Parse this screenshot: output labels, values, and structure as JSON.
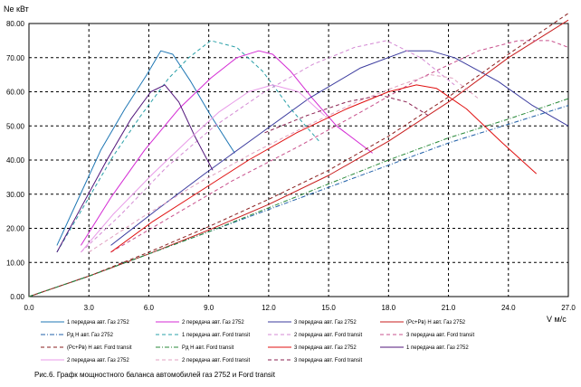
{
  "caption": "Рис.6. Графк мощностного баланса автомобилей газ 2752 и Ford transit",
  "chart_data": {
    "type": "line",
    "title": "",
    "ylabel": "Ne кВт",
    "xlabel": "V м/с",
    "xlim": [
      0,
      27
    ],
    "ylim": [
      0,
      80
    ],
    "xticks": [
      "0.0",
      "3.0",
      "6.0",
      "9.0",
      "12.0",
      "15.0",
      "18.0",
      "21.0",
      "24.0",
      "27.0"
    ],
    "yticks": [
      "0.00",
      "10.00",
      "20.00",
      "30.00",
      "40.00",
      "50.00",
      "60.00",
      "70.00",
      "80.00"
    ],
    "grid": true,
    "legend_position": "bottom",
    "series": [
      {
        "name": "1 передача авт. Газ 2752",
        "color": "#1f77b4",
        "dash": "solid",
        "x": [
          1.4,
          2.5,
          3.6,
          4.8,
          5.9,
          6.6,
          7.2,
          8.1,
          9.1,
          10.3
        ],
        "y": [
          15,
          29,
          43,
          55,
          65,
          72,
          71,
          63,
          53,
          42
        ]
      },
      {
        "name": "2 передача авт. Газ 2752",
        "color": "#d42ad4",
        "dash": "solid",
        "x": [
          2.6,
          4.1,
          5.8,
          7.5,
          9.1,
          10.4,
          11.5,
          12.2,
          13.1,
          14.2,
          15.4,
          17.2
        ],
        "y": [
          15,
          29,
          43,
          55,
          64,
          70,
          72,
          71,
          66,
          58,
          50,
          42
        ]
      },
      {
        "name": "3 передача авт. Газ 2752",
        "color": "#3b3b9e",
        "dash": "solid",
        "x": [
          4.1,
          6.3,
          8.8,
          11.4,
          14.0,
          16.6,
          18.9,
          20.1,
          21.3,
          23.5,
          25.2,
          27.0
        ],
        "y": [
          15,
          25,
          36,
          47,
          58,
          67,
          72,
          72,
          70,
          63,
          56,
          50
        ]
      },
      {
        "name": "(Pc+Pв) H авт. Газ 2752",
        "color": "#c81e1e",
        "dash": "solid",
        "x": [
          0,
          3,
          6,
          9,
          12,
          15,
          18,
          21,
          24,
          27
        ],
        "y": [
          0,
          6,
          12.5,
          19.5,
          27,
          35.5,
          45.5,
          57,
          70,
          81
        ]
      },
      {
        "name": "Pд H авт. Газ 2752",
        "color": "#1f5fa8",
        "dash": "dashdot",
        "x": [
          0,
          3,
          6,
          9,
          12,
          15,
          18,
          21,
          24,
          27
        ],
        "y": [
          0,
          6,
          12.5,
          19,
          25.5,
          32,
          38.5,
          45,
          50.5,
          56
        ]
      },
      {
        "name": "1 передача авт. Ford transit",
        "color": "#2aa0a8",
        "dash": "dash",
        "x": [
          1.4,
          2.8,
          4.2,
          5.6,
          7.0,
          8.0,
          9.1,
          10.4,
          11.7,
          13.1,
          14.6
        ],
        "y": [
          13,
          27,
          41,
          53,
          64,
          70,
          75,
          73,
          66,
          55,
          45
        ]
      },
      {
        "name": "2 передача авт. Ford transit",
        "color": "#d48ad4",
        "dash": "dash",
        "x": [
          2.6,
          4.6,
          6.9,
          9.3,
          11.8,
          14.2,
          16.3,
          17.9,
          19.6,
          21.3
        ],
        "y": [
          13,
          24,
          38,
          50,
          60,
          68,
          73,
          75,
          70,
          62
        ]
      },
      {
        "name": "3 передача авт. Ford transit",
        "color": "#c8508c",
        "dash": "dash",
        "x": [
          4.1,
          7.0,
          10.2,
          13.5,
          16.6,
          19.6,
          22.5,
          24.5,
          26.1,
          27.0
        ],
        "y": [
          13,
          23,
          34,
          44,
          54,
          64,
          72,
          75,
          75,
          73
        ]
      },
      {
        "name": "(Pc+Pв) H авт. Ford transit",
        "color": "#8a1e1e",
        "dash": "dash",
        "x": [
          0,
          3,
          6,
          9,
          12,
          15,
          18,
          21,
          24,
          27
        ],
        "y": [
          0,
          6,
          13,
          20.5,
          28.5,
          37,
          47,
          58.5,
          71,
          83
        ]
      },
      {
        "name": "Pд H авт. Ford transit",
        "color": "#2a8a3a",
        "dash": "dashdot",
        "x": [
          0,
          3,
          6,
          9,
          12,
          15,
          18,
          21,
          24,
          27
        ],
        "y": [
          0,
          6,
          12.5,
          19,
          26,
          33,
          40,
          46.5,
          52,
          58
        ]
      },
      {
        "name": "3 передача авт. Газ 2752",
        "color": "#e01010",
        "dash": "solid",
        "x": [
          4.1,
          6.2,
          8.6,
          11.0,
          13.4,
          15.9,
          18.0,
          19.4,
          20.4,
          21.9,
          23.7,
          25.4
        ],
        "y": [
          13,
          22,
          31,
          40,
          48,
          55,
          60,
          62,
          61,
          55,
          45,
          36
        ]
      },
      {
        "name": "1 передача авт. Газ 2752",
        "color": "#50147a",
        "dash": "solid",
        "x": [
          1.4,
          2.6,
          3.9,
          5.1,
          6.1,
          6.8,
          7.5,
          8.3,
          9.2
        ],
        "y": [
          13,
          26,
          40,
          52,
          60,
          62,
          57,
          47,
          37
        ]
      },
      {
        "name": "2 передача авт. Газ 2752",
        "color": "#e89ae8",
        "dash": "solid",
        "x": [
          2.6,
          4.2,
          6.2,
          8.0,
          9.5,
          11.0,
          12.2,
          13.5,
          14.8
        ],
        "y": [
          13,
          24,
          36,
          46,
          54,
          60,
          62,
          60,
          53
        ]
      },
      {
        "name": "2 передача авт. Ford transit",
        "color": "#e0a0c0",
        "dash": "dash",
        "x": [
          3.0,
          5.6,
          8.4,
          11.2,
          13.9,
          16.4,
          18.6,
          20.1,
          21.2,
          22.5
        ],
        "y": [
          13,
          23,
          33,
          42,
          50,
          57,
          62,
          65,
          64,
          58
        ]
      },
      {
        "name": "3 передача авт. Ford transit",
        "color": "#8a2050",
        "dash": "dash",
        "x": [
          11.8,
          13.9,
          15.9,
          17.6,
          18.9,
          20.0
        ],
        "y": [
          48,
          53,
          57,
          59,
          57,
          53
        ]
      }
    ]
  }
}
